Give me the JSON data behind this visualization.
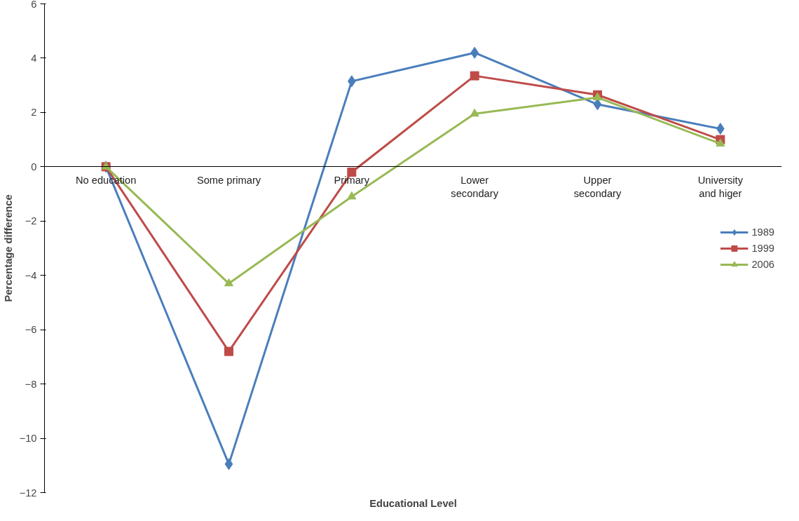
{
  "chart_data": {
    "type": "line",
    "xlabel": "Educational Level",
    "ylabel": "Percentage difference",
    "categories": [
      "No education",
      "Some primary",
      "Primary",
      "Lower\nsecondary",
      "Upper\nsecondary",
      "University\nand higer"
    ],
    "series": [
      {
        "name": "1989",
        "color": "#4a7ebb",
        "marker": "diamond",
        "values": [
          0,
          -10.95,
          3.15,
          4.2,
          2.3,
          1.4
        ]
      },
      {
        "name": "1999",
        "color": "#be4b48",
        "marker": "square",
        "values": [
          0,
          -6.8,
          -0.2,
          3.35,
          2.65,
          1.0
        ]
      },
      {
        "name": "2006",
        "color": "#98b954",
        "marker": "triangle",
        "values": [
          0,
          -4.3,
          -1.1,
          1.95,
          2.55,
          0.85
        ]
      }
    ],
    "ylim": [
      -12,
      6
    ],
    "yticks": [
      -12,
      -10,
      -8,
      -6,
      -4,
      -2,
      0,
      2,
      4,
      6
    ],
    "grid": false,
    "legend": "right"
  }
}
